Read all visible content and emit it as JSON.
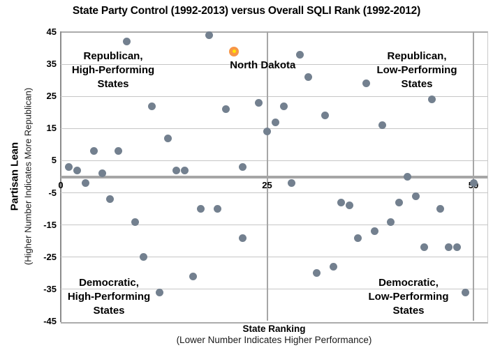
{
  "title": "State Party Control (1992-2013) versus Overall SQLI Rank (1992-2012)",
  "colors": {
    "point": "#73808f",
    "highlight_outer": "#f79646",
    "highlight_inner": "#ffe600",
    "gridline": "#c6c6c6",
    "zero_line": "#a6a6a6",
    "axis_border": "#8c8c8c"
  },
  "chart_data": {
    "type": "scatter",
    "title": "State Party Control (1992-2013) versus Overall SQLI Rank (1992-2012)",
    "xlabel": "State Ranking",
    "xlabel_note": "(Lower Number Indicates Higher Performance)",
    "ylabel": "Partisan Lean",
    "ylabel_note": "(Higher Number Indicates More Republican)",
    "x_ticks": [
      0,
      25,
      50
    ],
    "y_ticks": [
      45,
      35,
      25,
      15,
      5,
      -5,
      -15,
      -25,
      -35,
      -45
    ],
    "xlim": [
      0,
      51.6
    ],
    "ylim": [
      -45,
      45
    ],
    "grid": true,
    "quadrants": {
      "top_left": {
        "lines": [
          "Republican,",
          "High-Performing",
          "States"
        ]
      },
      "top_right": {
        "lines": [
          "Republican,",
          "Low-Performing",
          "States"
        ]
      },
      "bottom_left": {
        "lines": [
          "Democratic,",
          "High-Performing",
          "States"
        ]
      },
      "bottom_right": {
        "lines": [
          "Democratic,",
          "Low-Performing",
          "States"
        ]
      }
    },
    "highlighted_point": {
      "label": "North Dakota",
      "x": 21,
      "y": 39
    },
    "points": [
      [
        1,
        3
      ],
      [
        2,
        2
      ],
      [
        3,
        -2
      ],
      [
        4,
        8
      ],
      [
        5,
        1
      ],
      [
        6,
        -7
      ],
      [
        7,
        8
      ],
      [
        8,
        42
      ],
      [
        9,
        -14
      ],
      [
        10,
        -25
      ],
      [
        11,
        22
      ],
      [
        12,
        -36
      ],
      [
        13,
        12
      ],
      [
        14,
        2
      ],
      [
        15,
        2
      ],
      [
        16,
        -31
      ],
      [
        17,
        -10
      ],
      [
        18,
        44
      ],
      [
        19,
        -10
      ],
      [
        20,
        21
      ],
      [
        22,
        3
      ],
      [
        22,
        -19
      ],
      [
        24,
        23
      ],
      [
        25,
        14
      ],
      [
        26,
        17
      ],
      [
        27,
        22
      ],
      [
        28,
        -2
      ],
      [
        29,
        38
      ],
      [
        30,
        31
      ],
      [
        31,
        -30
      ],
      [
        32,
        19
      ],
      [
        33,
        -28
      ],
      [
        34,
        -8
      ],
      [
        35,
        -9
      ],
      [
        36,
        -19
      ],
      [
        37,
        29
      ],
      [
        38,
        -17
      ],
      [
        39,
        16
      ],
      [
        40,
        -14
      ],
      [
        41,
        -8
      ],
      [
        42,
        0
      ],
      [
        43,
        -6
      ],
      [
        44,
        -22
      ],
      [
        45,
        24
      ],
      [
        46,
        -10
      ],
      [
        47,
        -22
      ],
      [
        48,
        -22
      ],
      [
        49,
        -36
      ],
      [
        50,
        -2
      ]
    ]
  }
}
